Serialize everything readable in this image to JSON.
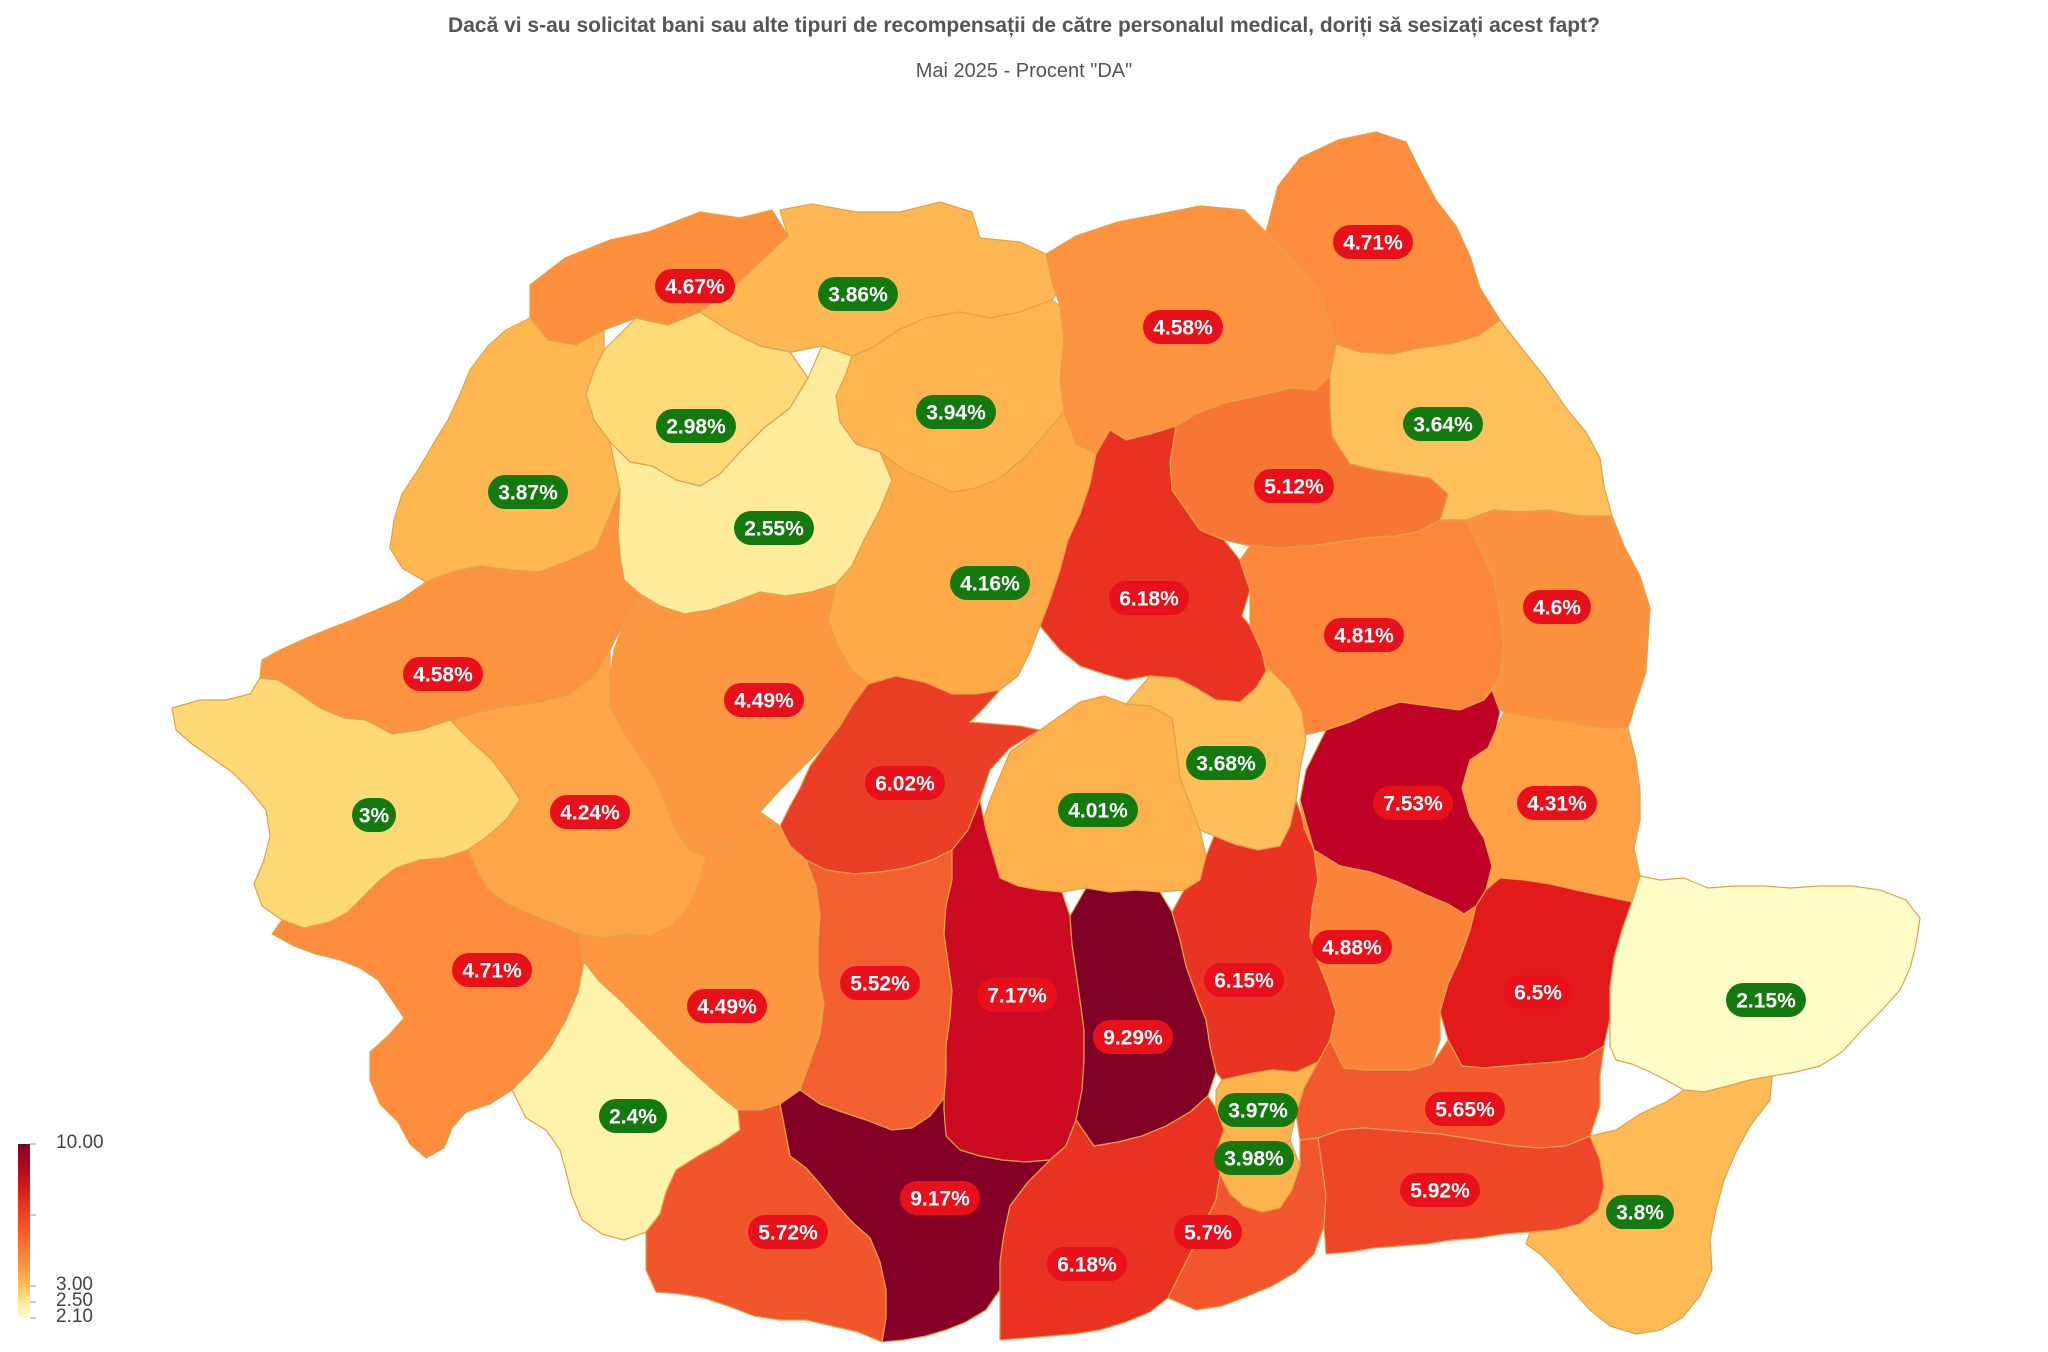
{
  "title": "Dacă vi s-au solicitat bani sau alte tipuri de recompensații de către personalul medical, doriți să sesizați acest fapt?",
  "subtitle": "Mai 2025 - Procent \"DA\"",
  "colors": {
    "high_label_bg": "#e8101b",
    "low_label_bg": "#147a10",
    "scale": [
      "#ffffcc",
      "#ffeda0",
      "#fed976",
      "#feb24c",
      "#fd8d3c",
      "#fc4e2a",
      "#e31a1c",
      "#bd0026",
      "#800026"
    ]
  },
  "legend": {
    "ticks": [
      "10.00",
      "3.00",
      "2.50",
      "2.10"
    ]
  },
  "regions": [
    {
      "id": "maramures",
      "value": 3.86,
      "label": "3.86%"
    },
    {
      "id": "satu-mare",
      "value": 4.67,
      "label": "4.67%"
    },
    {
      "id": "suceava",
      "value": 4.58,
      "label": "4.58%"
    },
    {
      "id": "botosani",
      "value": 4.71,
      "label": "4.71%"
    },
    {
      "id": "iasi",
      "value": 3.64,
      "label": "3.64%"
    },
    {
      "id": "salaj",
      "value": 2.98,
      "label": "2.98%"
    },
    {
      "id": "bistrita-nasaud",
      "value": 3.94,
      "label": "3.94%"
    },
    {
      "id": "bihor",
      "value": 3.87,
      "label": "3.87%"
    },
    {
      "id": "cluj",
      "value": 2.55,
      "label": "2.55%"
    },
    {
      "id": "neamt",
      "value": 5.12,
      "label": "5.12%"
    },
    {
      "id": "mures",
      "value": 4.16,
      "label": "4.16%"
    },
    {
      "id": "harghita",
      "value": 6.18,
      "label": "6.18%"
    },
    {
      "id": "bacau",
      "value": 4.81,
      "label": "4.81%"
    },
    {
      "id": "vaslui",
      "value": 4.6,
      "label": "4.6%"
    },
    {
      "id": "arad",
      "value": 4.58,
      "label": "4.58%"
    },
    {
      "id": "alba",
      "value": 4.49,
      "label": "4.49%"
    },
    {
      "id": "sibiu",
      "value": 6.02,
      "label": "6.02%"
    },
    {
      "id": "brasov",
      "value": 4.01,
      "label": "4.01%"
    },
    {
      "id": "covasna",
      "value": 3.68,
      "label": "3.68%"
    },
    {
      "id": "vrancea",
      "value": 7.53,
      "label": "7.53%"
    },
    {
      "id": "galati",
      "value": 4.31,
      "label": "4.31%"
    },
    {
      "id": "timis",
      "value": 3.0,
      "label": "3%"
    },
    {
      "id": "hunedoara",
      "value": 4.24,
      "label": "4.24%"
    },
    {
      "id": "caras-severin",
      "value": 4.71,
      "label": "4.71%"
    },
    {
      "id": "gorj",
      "value": 4.49,
      "label": "4.49%"
    },
    {
      "id": "valcea",
      "value": 5.52,
      "label": "5.52%"
    },
    {
      "id": "arges",
      "value": 7.17,
      "label": "7.17%"
    },
    {
      "id": "dambovita",
      "value": 9.29,
      "label": "9.29%"
    },
    {
      "id": "prahova",
      "value": 6.15,
      "label": "6.15%"
    },
    {
      "id": "buzau",
      "value": 4.88,
      "label": "4.88%"
    },
    {
      "id": "braila",
      "value": 6.5,
      "label": "6.5%"
    },
    {
      "id": "tulcea",
      "value": 2.15,
      "label": "2.15%"
    },
    {
      "id": "mehedinti",
      "value": 2.4,
      "label": "2.4%"
    },
    {
      "id": "ilfov",
      "value": 3.97,
      "label": "3.97%"
    },
    {
      "id": "ialomita",
      "value": 5.65,
      "label": "5.65%"
    },
    {
      "id": "bucuresti",
      "value": 3.98,
      "label": "3.98%"
    },
    {
      "id": "olt",
      "value": 9.17,
      "label": "9.17%"
    },
    {
      "id": "dolj",
      "value": 5.72,
      "label": "5.72%"
    },
    {
      "id": "teleorman",
      "value": 6.18,
      "label": "6.18%"
    },
    {
      "id": "giurgiu",
      "value": 5.7,
      "label": "5.7%"
    },
    {
      "id": "calarasi",
      "value": 5.92,
      "label": "5.92%"
    },
    {
      "id": "constanta",
      "value": 3.8,
      "label": "3.8%"
    }
  ]
}
